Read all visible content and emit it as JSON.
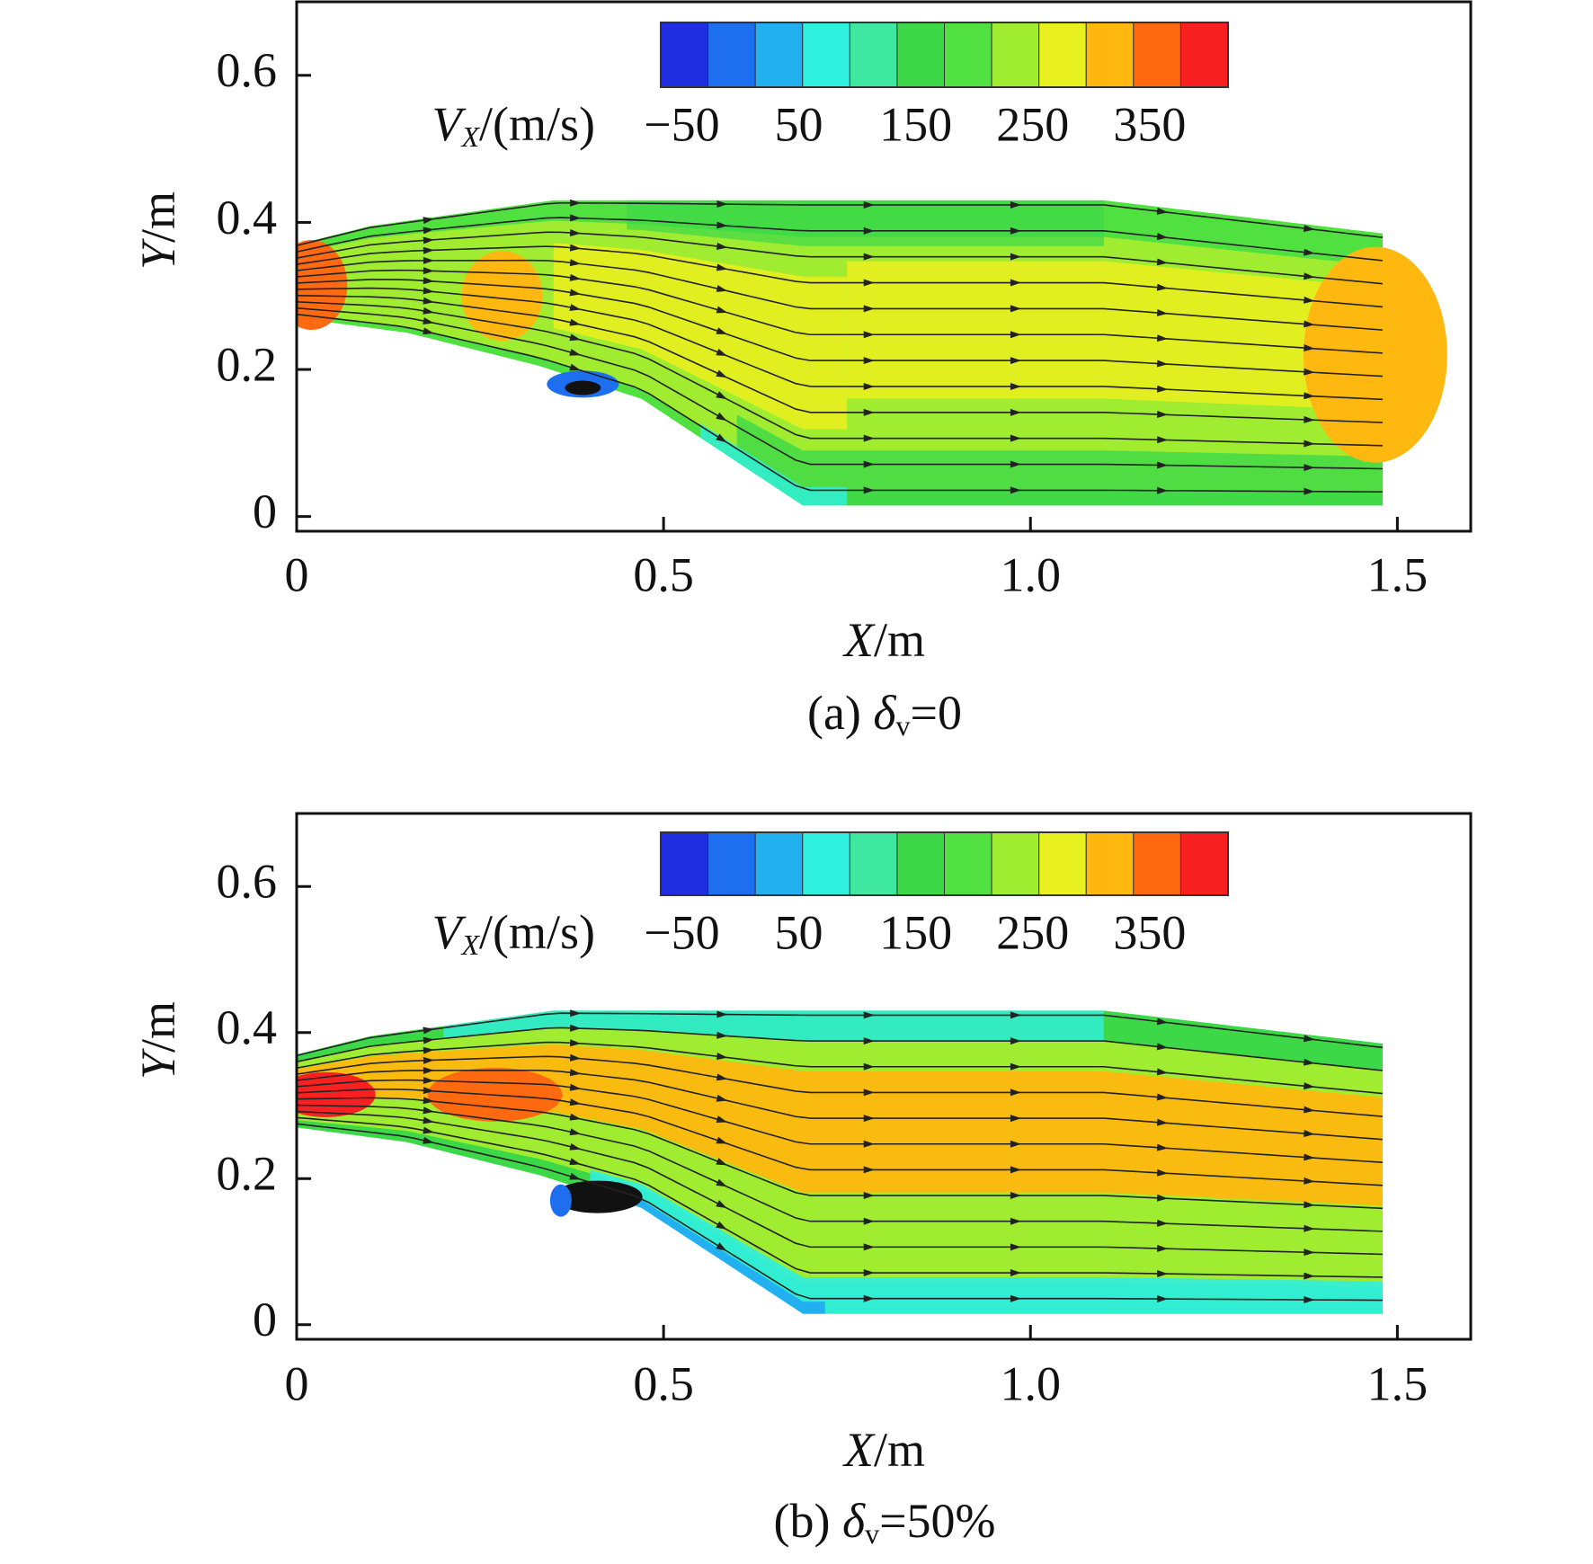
{
  "chart_data": [
    {
      "type": "contour",
      "caption": [
        "(a) ",
        "δ",
        "v",
        "=0"
      ],
      "xlabel": [
        "X",
        "/m"
      ],
      "ylabel": [
        "Y",
        "/m"
      ],
      "xlim": [
        0,
        1.6
      ],
      "ylim": [
        -0.02,
        0.7
      ],
      "xticks": [
        0,
        0.5,
        {
          "value": 1,
          "label": "1.0"
        },
        1.5
      ],
      "yticks": [
        0,
        0.2,
        0.4,
        0.6
      ],
      "colorbar": {
        "label": [
          "V",
          "X",
          "/(m/s)"
        ],
        "range": [
          -68,
          417
        ],
        "ticks": [
          {
            "value": -50,
            "label": "−50"
          },
          50,
          150,
          250,
          350
        ],
        "colors": [
          "#1f2fe0",
          "#1e6ff0",
          "#22b0f0",
          "#30f0e0",
          "#3fe8a0",
          "#3cd848",
          "#50e040",
          "#a0ec30",
          "#e8f020",
          "#ffb810",
          "#ff6a10",
          "#f82020"
        ]
      }
    },
    {
      "type": "contour",
      "caption": [
        "(b) ",
        "δ",
        "v",
        "=50%"
      ],
      "xlabel": [
        "X",
        "/m"
      ],
      "ylabel": [
        "Y",
        "/m"
      ],
      "xlim": [
        0,
        1.6
      ],
      "ylim": [
        -0.02,
        0.7
      ],
      "xticks": [
        0,
        0.5,
        {
          "value": 1,
          "label": "1.0"
        },
        1.5
      ],
      "yticks": [
        0,
        0.2,
        0.4,
        0.6
      ],
      "colorbar": {
        "label": [
          "V",
          "X",
          "/(m/s)"
        ],
        "range": [
          -68,
          417
        ],
        "ticks": [
          {
            "value": -50,
            "label": "−50"
          },
          50,
          150,
          250,
          350
        ],
        "colors": [
          "#1f2fe0",
          "#1e6ff0",
          "#22b0f0",
          "#30f0e0",
          "#3fe8a0",
          "#3cd848",
          "#50e040",
          "#a0ec30",
          "#e8f020",
          "#ffb810",
          "#ff6a10",
          "#f82020"
        ]
      }
    }
  ]
}
